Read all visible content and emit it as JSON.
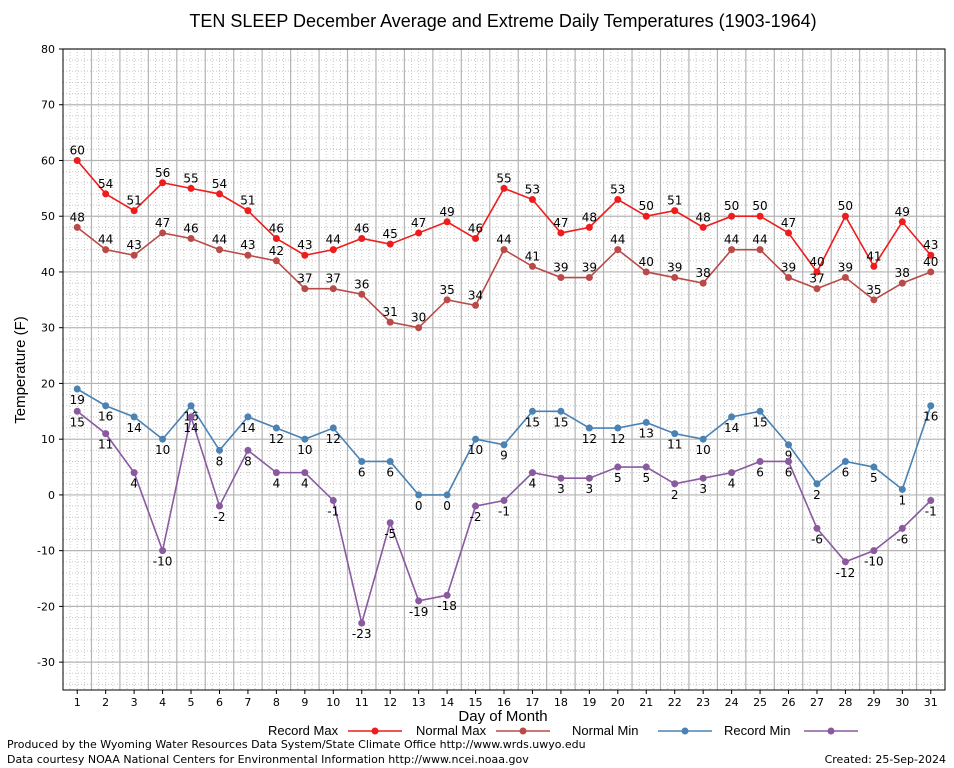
{
  "chart_data": {
    "type": "line",
    "title": "TEN SLEEP December Average and Extreme Daily Temperatures (1903-1964)",
    "xlabel": "Day of Month",
    "ylabel": "Temperature (F)",
    "ylim": [
      -35,
      80
    ],
    "yticks": [
      -30,
      -20,
      -10,
      0,
      10,
      20,
      30,
      40,
      50,
      60,
      70,
      80
    ],
    "grid": true,
    "legend_position": "bottom",
    "x": [
      1,
      2,
      3,
      4,
      5,
      6,
      7,
      8,
      9,
      10,
      11,
      12,
      13,
      14,
      15,
      16,
      17,
      18,
      19,
      20,
      21,
      22,
      23,
      24,
      25,
      26,
      27,
      28,
      29,
      30,
      31
    ],
    "series": [
      {
        "name": "Record Max",
        "color": "#ee1c1c",
        "values": [
          60,
          54,
          51,
          56,
          55,
          54,
          51,
          46,
          43,
          44,
          46,
          45,
          47,
          49,
          46,
          55,
          53,
          47,
          48,
          53,
          50,
          51,
          48,
          50,
          50,
          47,
          40,
          50,
          41,
          49,
          43
        ]
      },
      {
        "name": "Normal Max",
        "color": "#b94a48",
        "values": [
          48,
          44,
          43,
          47,
          46,
          44,
          43,
          42,
          37,
          37,
          36,
          31,
          30,
          35,
          34,
          44,
          41,
          39,
          39,
          44,
          40,
          39,
          38,
          44,
          44,
          39,
          37,
          39,
          35,
          38,
          40
        ]
      },
      {
        "name": "Normal Min",
        "color": "#4a82b4",
        "values": [
          19,
          16,
          14,
          10,
          16,
          8,
          14,
          12,
          10,
          12,
          6,
          6,
          0,
          0,
          10,
          9,
          15,
          15,
          12,
          12,
          13,
          11,
          10,
          14,
          15,
          9,
          2,
          6,
          5,
          1,
          16
        ]
      },
      {
        "name": "Record Min",
        "color": "#8a5aa0",
        "values": [
          15,
          11,
          4,
          -10,
          14,
          -2,
          8,
          4,
          4,
          -1,
          -23,
          -5,
          -19,
          -18,
          -2,
          -1,
          4,
          3,
          3,
          5,
          5,
          2,
          3,
          4,
          6,
          6,
          -6,
          -12,
          -10,
          -6,
          -1
        ]
      }
    ]
  },
  "footer": {
    "produced_by": "Produced by the Wyoming Water Resources Data System/State Climate Office http://www.wrds.uwyo.edu",
    "courtesy": "Data courtesy NOAA National Centers for Environmental Information http://www.ncei.noaa.gov",
    "created": "Created: 25-Sep-2024"
  }
}
